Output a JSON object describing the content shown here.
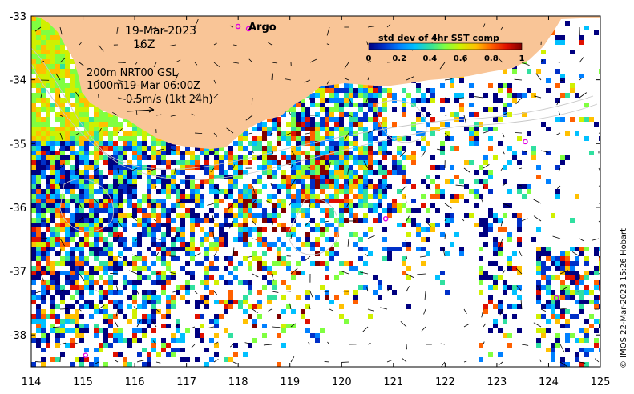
{
  "map": {
    "x_ticks": [
      "114",
      "115",
      "116",
      "117",
      "118",
      "119",
      "120",
      "121",
      "122",
      "123",
      "124",
      "125"
    ],
    "y_ticks": [
      "-33",
      "-34",
      "-35",
      "-36",
      "-37",
      "-38"
    ],
    "lon_range": [
      114,
      125
    ],
    "lat_range": [
      -38.5,
      -33
    ],
    "land_color": "#f9c597",
    "ocean_color": "#ffffff"
  },
  "annotations": {
    "date": "19-Mar-2023",
    "hour": "16Z",
    "contour_line1": "200m  NRT00 GSL",
    "contour_line2": "1000m19-Mar 06:00Z",
    "current_scale": "0.5m/s (1kt 24h)",
    "argo_label": "Argo"
  },
  "colorbar": {
    "title": "std dev of 4hr SST comp",
    "ticks": [
      "0",
      "0.2",
      "0.4",
      "0.6",
      "0.8",
      "1"
    ],
    "range": [
      0,
      1
    ],
    "colors": [
      "#000080",
      "#0030c8",
      "#0080ff",
      "#00c0ff",
      "#30e0a0",
      "#80ff40",
      "#d0f000",
      "#ffc000",
      "#ff6000",
      "#e01000",
      "#800000"
    ]
  },
  "argo_floats": [
    {
      "lon": 118.2,
      "lat": -33.2
    },
    {
      "lon": 123.55,
      "lat": -34.97
    },
    {
      "lon": 120.85,
      "lat": -36.18
    },
    {
      "lon": 124.15,
      "lat": -37.42
    },
    {
      "lon": 115.05,
      "lat": -38.32
    }
  ],
  "credit": "© IMOS 22-Mar-2023 15:26 Hobart"
}
